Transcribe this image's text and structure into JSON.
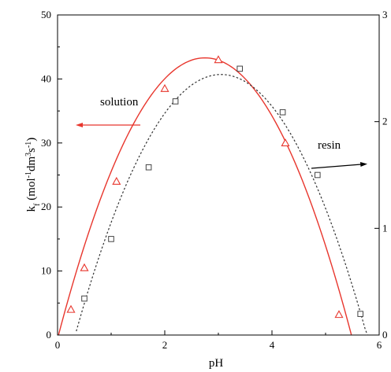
{
  "chart_data": {
    "type": "scatter",
    "xlabel": "pH",
    "ylabel": "k_f (mol^-1 dm^3 s^-1)",
    "ylabel_parts": {
      "k": "k",
      "sub": "f",
      "open": " (mol",
      "exp1": "-1",
      "mid": "dm",
      "exp2": "3",
      "s": "s",
      "exp3": "-1",
      "close": ")"
    },
    "xlim": [
      0,
      6
    ],
    "ylim": [
      0,
      50
    ],
    "y2lim": [
      0,
      3
    ],
    "x_ticks": [
      "0",
      "2",
      "4",
      "6"
    ],
    "y_ticks": [
      "0",
      "10",
      "20",
      "30",
      "40",
      "50"
    ],
    "y2_ticks": [
      "0",
      "1",
      "2",
      "3"
    ],
    "grid": false,
    "series": [
      {
        "marker": "triangle",
        "color": "#e8362d",
        "points": [
          {
            "x": 0.25,
            "y": 4.0
          },
          {
            "x": 0.5,
            "y": 10.5
          },
          {
            "x": 1.1,
            "y": 24.0
          },
          {
            "x": 2.0,
            "y": 38.5
          },
          {
            "x": 3.0,
            "y": 43.0
          },
          {
            "x": 4.25,
            "y": 30.0
          },
          {
            "x": 5.25,
            "y": 3.2
          }
        ]
      },
      {
        "marker": "square",
        "color": "#444444",
        "points": [
          {
            "x": 0.5,
            "y": 5.7
          },
          {
            "x": 1.0,
            "y": 15.0
          },
          {
            "x": 1.7,
            "y": 26.2
          },
          {
            "x": 2.2,
            "y": 36.5
          },
          {
            "x": 3.4,
            "y": 41.6
          },
          {
            "x": 4.2,
            "y": 34.8
          },
          {
            "x": 4.85,
            "y": 25.0
          },
          {
            "x": 5.65,
            "y": 3.3
          }
        ]
      }
    ],
    "fits": [
      {
        "style": "solid",
        "color": "#e8362d",
        "vertex_x": 2.75,
        "vertex_y": 43.3,
        "a": 5.8,
        "x_from": 0.02,
        "x_to": 5.48
      },
      {
        "style": "dotted",
        "color": "#333333",
        "vertex_x": 3.05,
        "vertex_y": 40.7,
        "a": 5.5,
        "x_from": 0.35,
        "x_to": 5.78
      }
    ],
    "annotations": [
      {
        "text": "solution",
        "arrow": "left",
        "color": "#e8362d"
      },
      {
        "text": "resin",
        "arrow": "right",
        "color": "#000000"
      }
    ]
  }
}
